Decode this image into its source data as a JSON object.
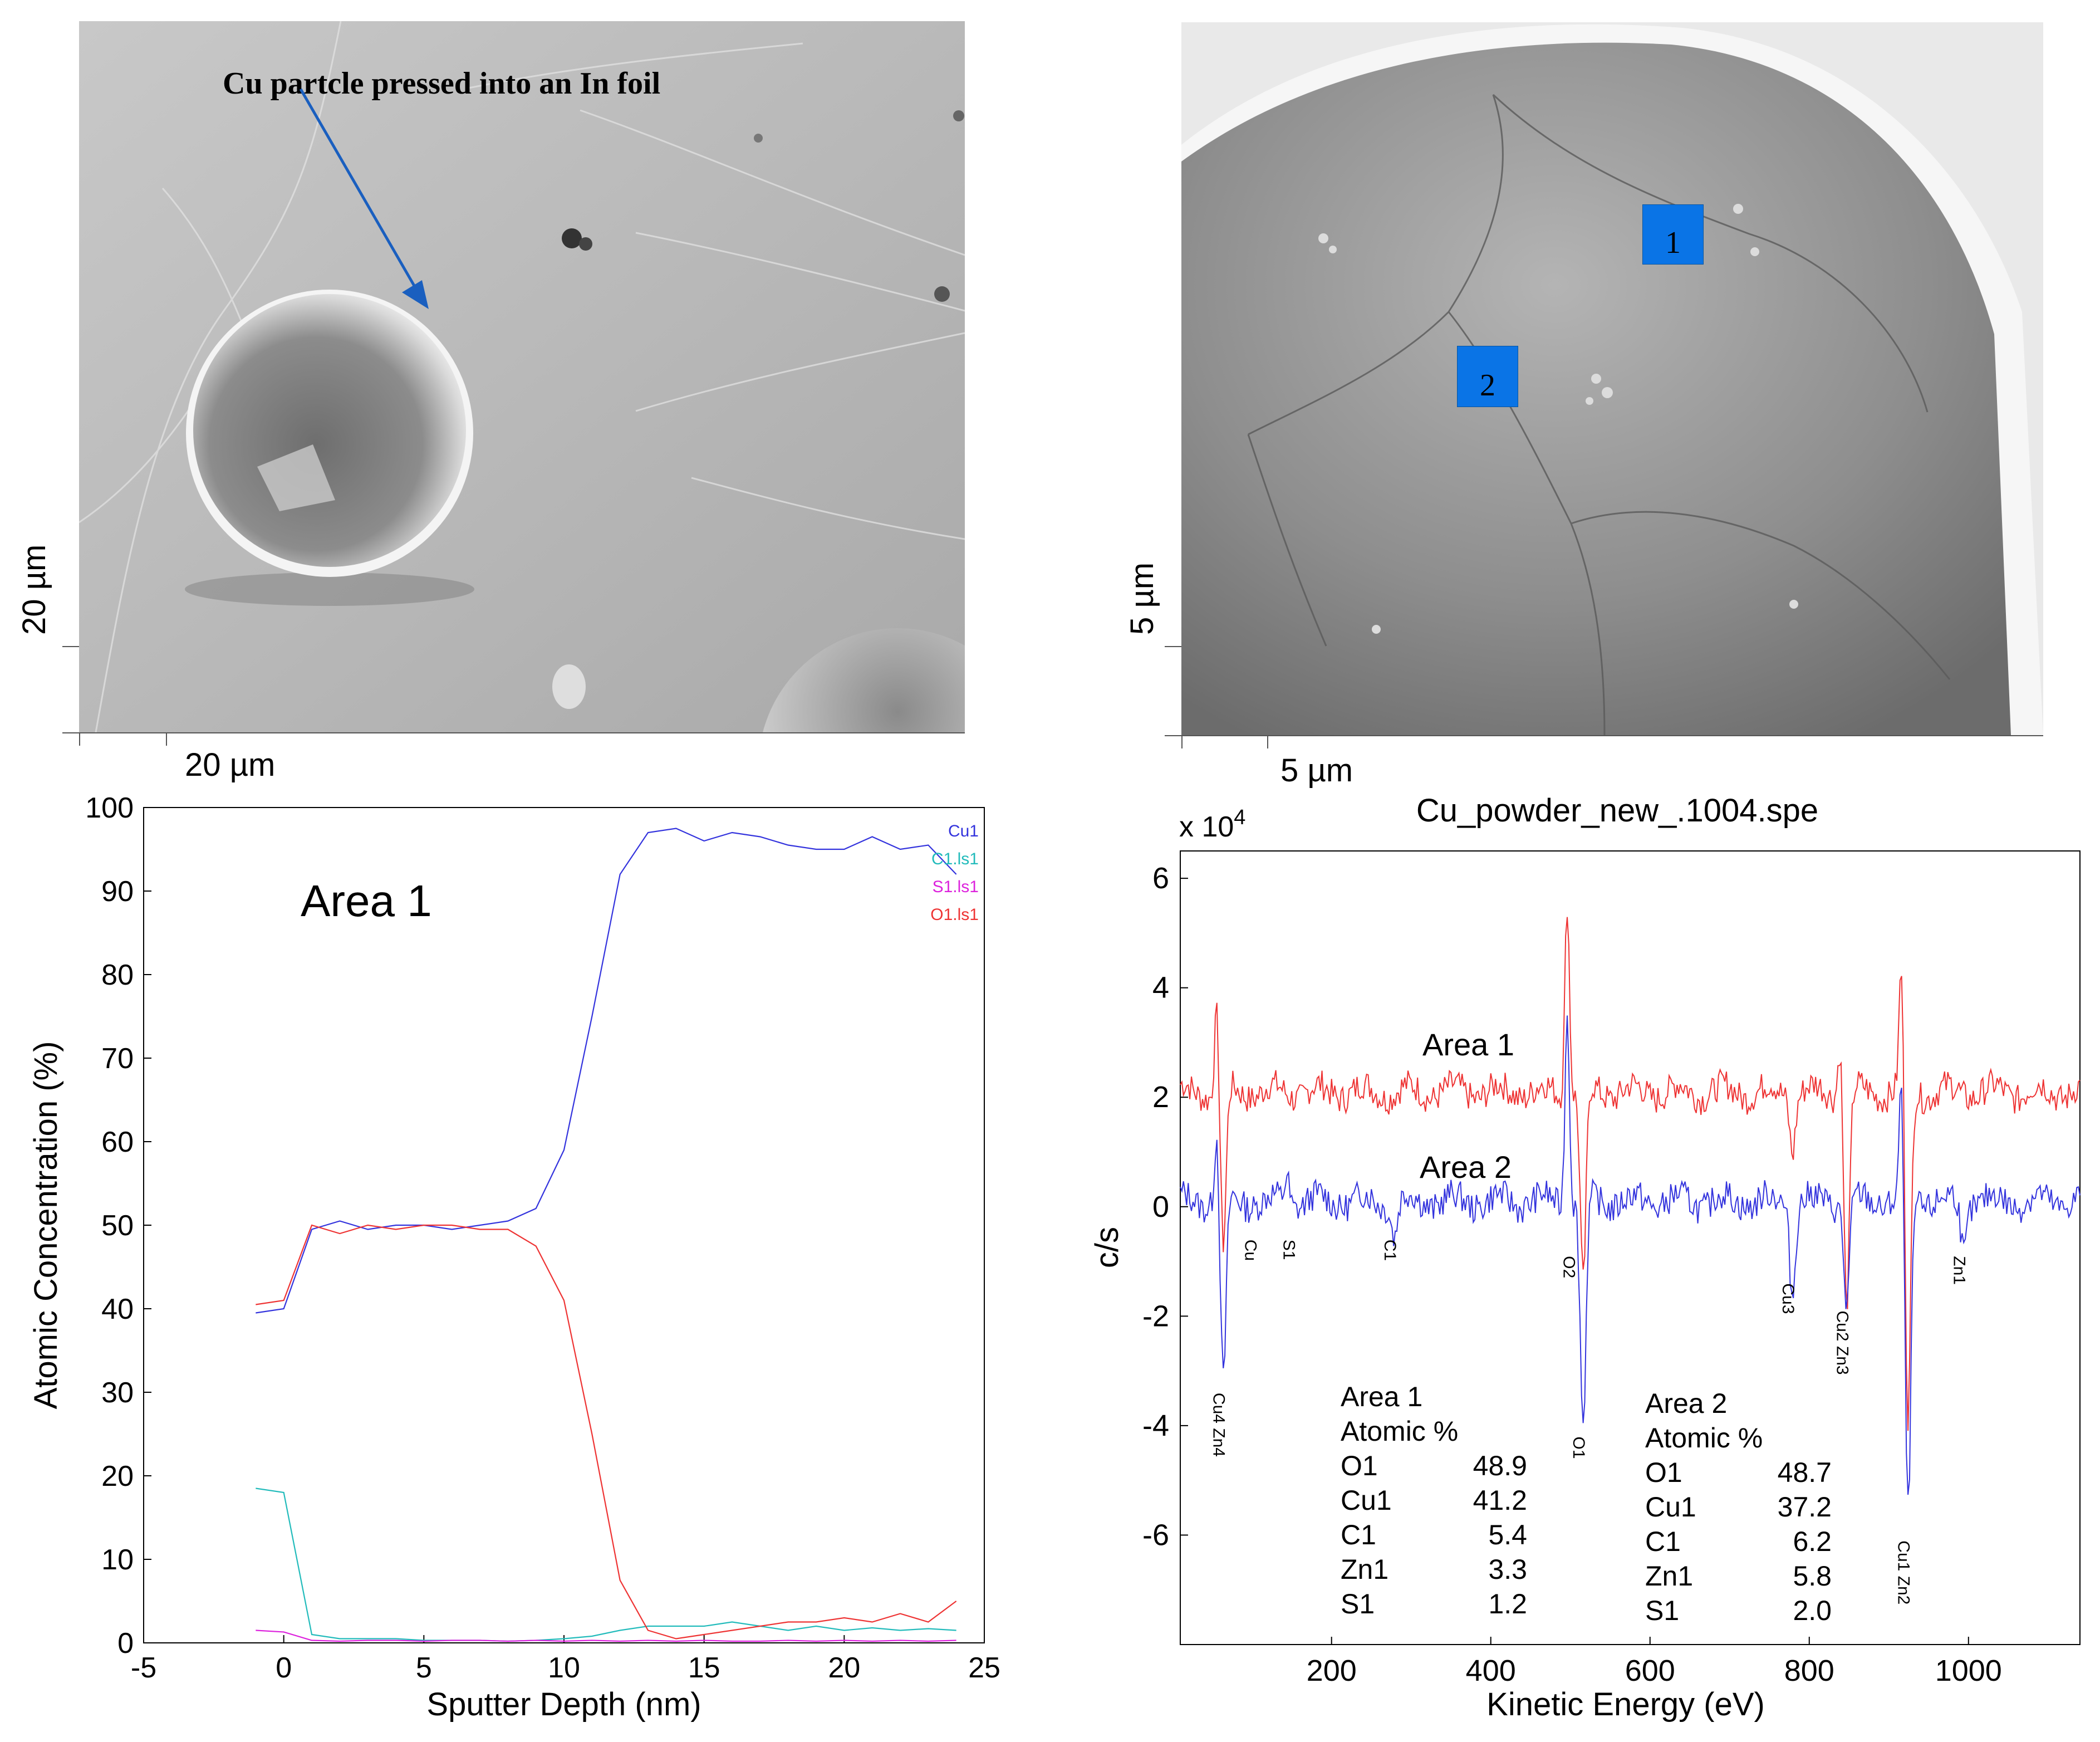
{
  "sem_left": {
    "annotation": "Cu partcle pressed into an In foil",
    "scale_y": "20 µm",
    "scale_x": "20 µm"
  },
  "sem_right": {
    "scale_y": "5 µm",
    "scale_x": "5 µm",
    "markers": [
      "1",
      "2"
    ],
    "marker_color": "#0a74e6"
  },
  "chart_data": [
    {
      "type": "line",
      "annotation": "Area 1",
      "xlabel": "Sputter Depth (nm)",
      "ylabel": "Atomic Concentration (%)",
      "xlim": [
        -5,
        25
      ],
      "ylim": [
        0,
        100
      ],
      "xticks": [
        -5,
        0,
        5,
        10,
        15,
        20,
        25
      ],
      "yticks": [
        0,
        10,
        20,
        30,
        40,
        50,
        60,
        70,
        80,
        90,
        100
      ],
      "legend_position": "top-right",
      "series": [
        {
          "name": "Cu1",
          "color": "#3333dd",
          "x": [
            -1,
            0,
            1,
            2,
            3,
            4,
            5,
            6,
            7,
            8,
            9,
            10,
            11,
            12,
            13,
            14,
            15,
            16,
            17,
            18,
            19,
            20,
            21,
            22,
            23,
            24
          ],
          "y": [
            39.5,
            40,
            49.5,
            50.5,
            49.5,
            50,
            50,
            49.5,
            50,
            50.5,
            52,
            59,
            75,
            92,
            97,
            97.5,
            96,
            97,
            96.5,
            95.5,
            95,
            95,
            96.5,
            95,
            95.5,
            92
          ]
        },
        {
          "name": "C1.ls1",
          "color": "#22bbbb",
          "x": [
            -1,
            0,
            1,
            2,
            3,
            4,
            5,
            6,
            7,
            8,
            9,
            10,
            11,
            12,
            13,
            14,
            15,
            16,
            17,
            18,
            19,
            20,
            21,
            22,
            23,
            24
          ],
          "y": [
            18.5,
            18,
            1,
            0.5,
            0.5,
            0.5,
            0.3,
            0.3,
            0.3,
            0.2,
            0.3,
            0.5,
            0.8,
            1.5,
            2,
            2,
            2,
            2.5,
            2,
            1.5,
            2,
            1.5,
            1.8,
            1.5,
            1.7,
            1.5
          ]
        },
        {
          "name": "S1.ls1",
          "color": "#dd22dd",
          "x": [
            -1,
            0,
            1,
            2,
            3,
            4,
            5,
            6,
            7,
            8,
            9,
            10,
            11,
            12,
            13,
            14,
            15,
            16,
            17,
            18,
            19,
            20,
            21,
            22,
            23,
            24
          ],
          "y": [
            1.5,
            1.3,
            0.3,
            0.2,
            0.3,
            0.3,
            0.2,
            0.3,
            0.3,
            0.2,
            0.3,
            0.2,
            0.3,
            0.2,
            0.3,
            0.2,
            0.3,
            0.2,
            0.2,
            0.3,
            0.2,
            0.3,
            0.2,
            0.3,
            0.2,
            0.3
          ]
        },
        {
          "name": "O1.ls1",
          "color": "#ee3333",
          "x": [
            -1,
            0,
            1,
            2,
            3,
            4,
            5,
            6,
            7,
            8,
            9,
            10,
            11,
            12,
            13,
            14,
            15,
            16,
            17,
            18,
            19,
            20,
            21,
            22,
            23,
            24
          ],
          "y": [
            40.5,
            41,
            50,
            49,
            50,
            49.5,
            50,
            50,
            49.5,
            49.5,
            47.5,
            41,
            25,
            7.5,
            1.5,
            0.5,
            1,
            1.5,
            2,
            2.5,
            2.5,
            3,
            2.5,
            3.5,
            2.5,
            5
          ]
        }
      ]
    },
    {
      "type": "line",
      "title": "Cu_powder_new_.1004.spe",
      "xlabel": "Kinetic Energy (eV)",
      "ylabel": "c/s",
      "scale_label": "x 10",
      "scale_exponent": "4",
      "xlim": [
        10,
        1140
      ],
      "ylim": [
        -8,
        6.5
      ],
      "xticks": [
        200,
        400,
        600,
        800,
        1000
      ],
      "yticks": [
        -6,
        -4,
        -2,
        0,
        2,
        4,
        6
      ],
      "series": [
        {
          "name": "Area 1",
          "color": "#ee3333",
          "base": 2.1
        },
        {
          "name": "Area 2",
          "color": "#3333dd",
          "base": 0.1
        }
      ],
      "peaks": [
        {
          "label": "Cu4 Zn4",
          "x": 60,
          "area1": 3.7,
          "area1_min": -0.8,
          "area2": 1.5,
          "area2_min": -3.3
        },
        {
          "label": "Cu",
          "x": 100
        },
        {
          "label": "S1",
          "x": 148,
          "area2": 0.6
        },
        {
          "label": "C1",
          "x": 275,
          "area2_min": -0.5
        },
        {
          "label": "O2",
          "x": 500,
          "area1": 5.7,
          "area2": 3.7
        },
        {
          "label": "O1",
          "x": 512,
          "area1_min": -1.5,
          "area2_min": -4.1
        },
        {
          "label": "Cu3",
          "x": 775,
          "area1_min": 1.1,
          "area2_min": -1.5
        },
        {
          "label": "Cu2 Zn3",
          "x": 843,
          "area1": 3.2,
          "area1_min": -1.8,
          "area2_min": -1.8
        },
        {
          "label": "Cu1 Zn2",
          "x": 920,
          "area1": 4.6,
          "area1_min": -4.0,
          "area2": 2.3,
          "area2_min": -5.7
        },
        {
          "label": "Zn1",
          "x": 990,
          "area2_min": -0.8
        }
      ],
      "area_labels": {
        "area1": "Area 1",
        "area2": "Area 2"
      },
      "tables": [
        {
          "title": "Area 1",
          "subtitle": "Atomic %",
          "rows": [
            [
              "O1",
              "48.9"
            ],
            [
              "Cu1",
              "41.2"
            ],
            [
              "C1",
              "5.4"
            ],
            [
              "Zn1",
              "3.3"
            ],
            [
              "S1",
              "1.2"
            ]
          ]
        },
        {
          "title": "Area 2",
          "subtitle": "Atomic %",
          "rows": [
            [
              "O1",
              "48.7"
            ],
            [
              "Cu1",
              "37.2"
            ],
            [
              "C1",
              "6.2"
            ],
            [
              "Zn1",
              "5.8"
            ],
            [
              "S1",
              "2.0"
            ]
          ]
        }
      ]
    }
  ]
}
